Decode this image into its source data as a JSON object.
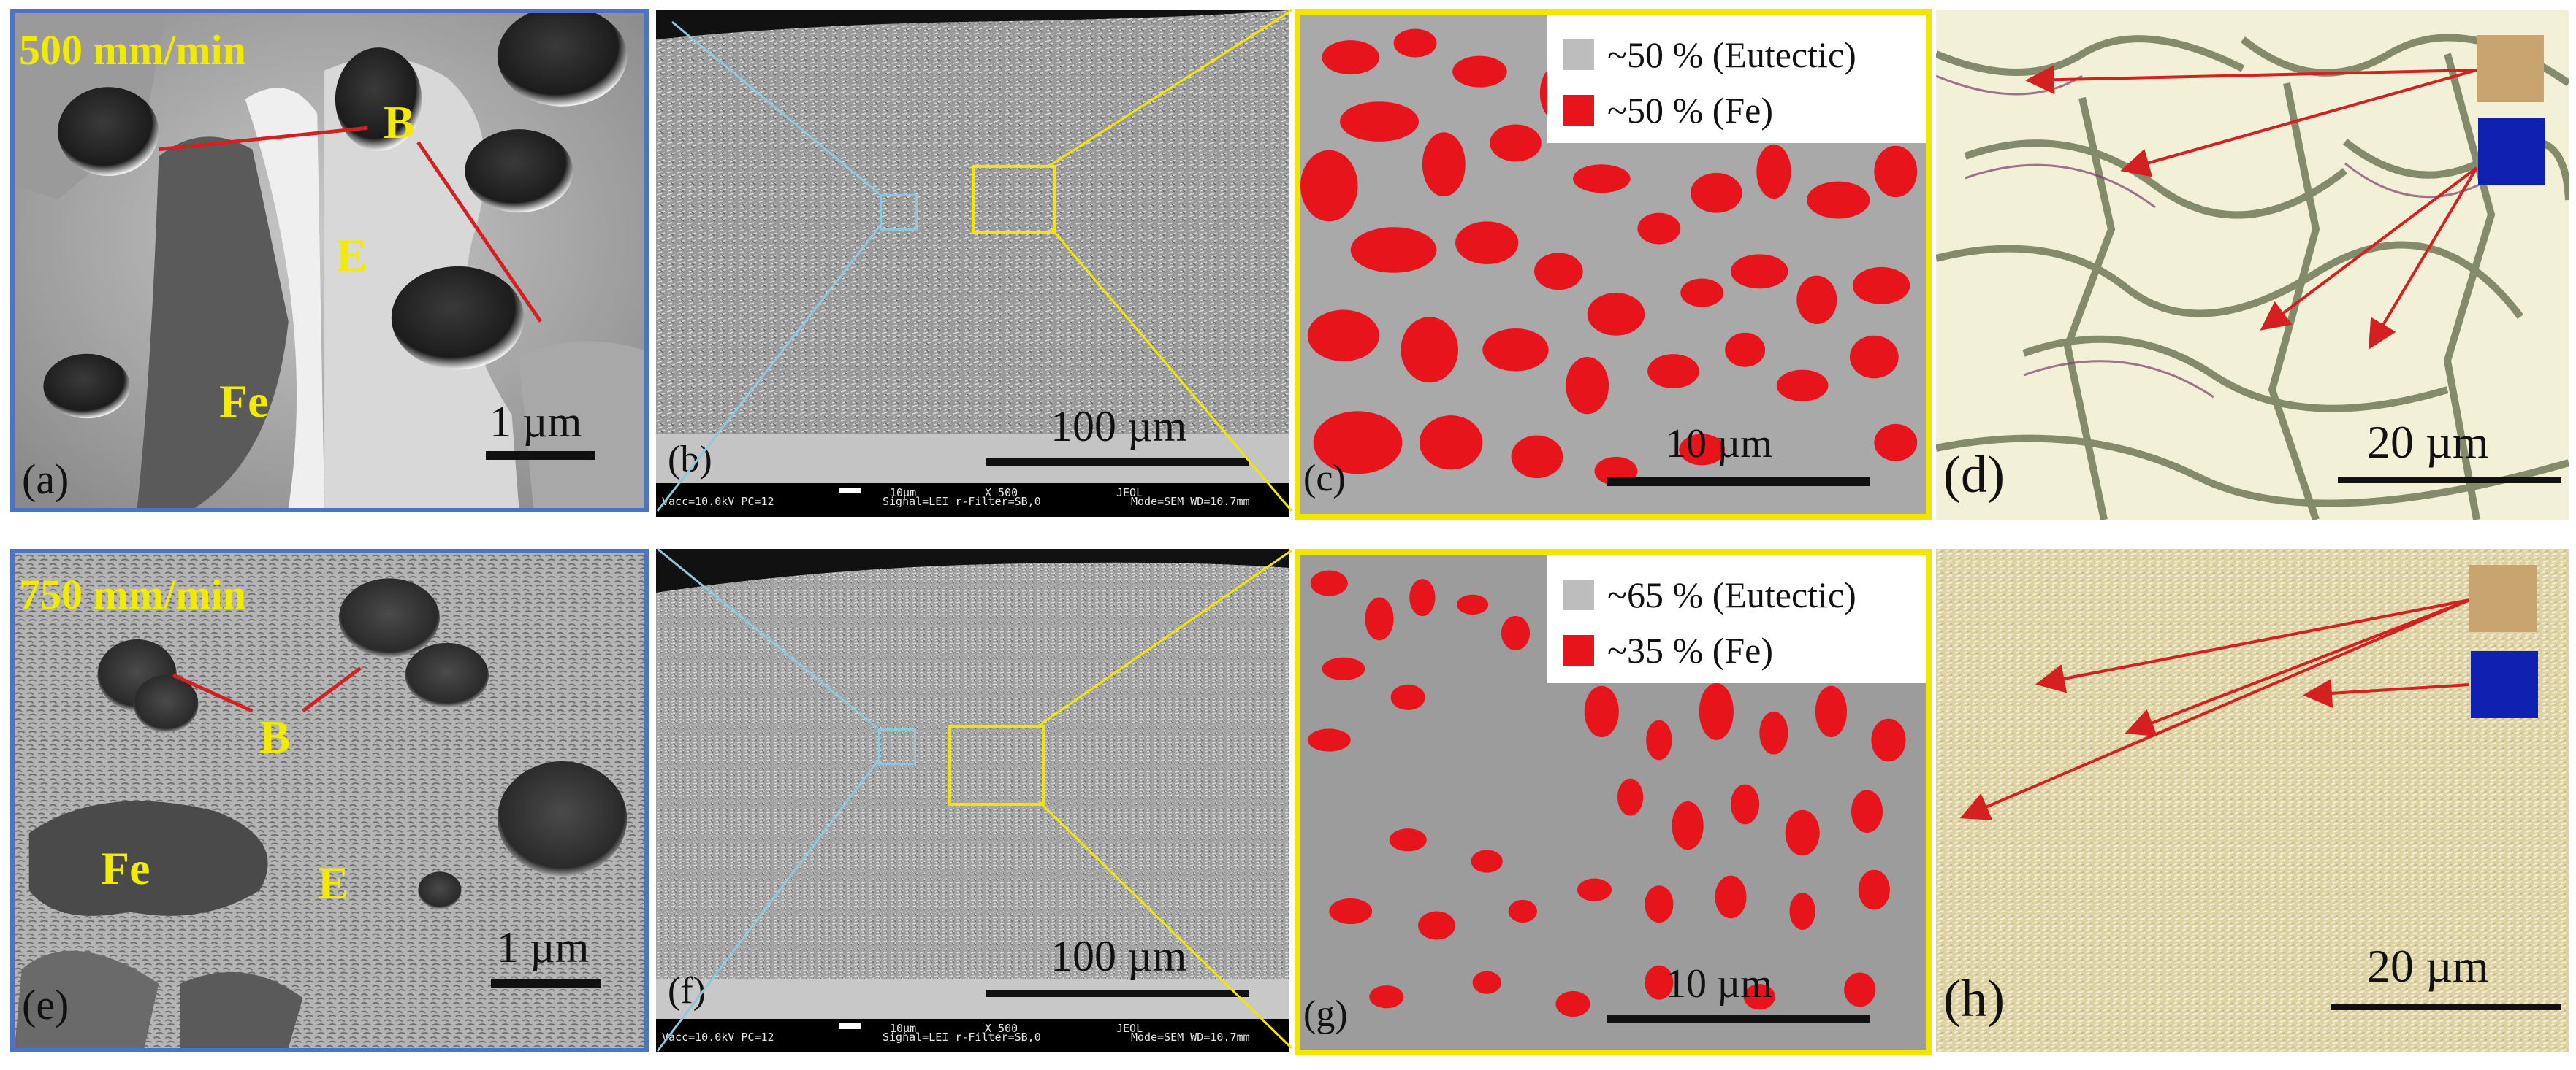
{
  "rows": [
    {
      "speed": "500 mm/min",
      "phase_labels": {
        "boride": "B",
        "eutectic": "E",
        "iron": "Fe"
      },
      "panel_letters": [
        "(a)",
        "(b)",
        "(c)",
        "(d)"
      ],
      "scale_labels": {
        "a": "1 µm",
        "b": "100 µm",
        "c": "10 µm",
        "d": "20 µm"
      },
      "legend": [
        {
          "text": "~50 % (Eutectic)",
          "color": "#bdbdbd"
        },
        {
          "text": "~50 % (Fe)",
          "color": "#e8141c"
        }
      ],
      "sem_footer": {
        "scalebar_label": "10µm",
        "vacc": "Vacc=10.0kV PC=12",
        "signal": "Signal=LEI  r-Filter=SB,0",
        "mag": "X 500",
        "brand": "JEOL",
        "mode": "Mode=SEM WD=10.7mm"
      }
    },
    {
      "speed": "750 mm/min",
      "phase_labels": {
        "boride": "B",
        "eutectic": "E",
        "iron": "Fe"
      },
      "panel_letters": [
        "(e)",
        "(f)",
        "(g)",
        "(h)"
      ],
      "scale_labels": {
        "a": "1 µm",
        "b": "100 µm",
        "c": "10 µm",
        "d": "20 µm"
      },
      "legend": [
        {
          "text": "~65 % (Eutectic)",
          "color": "#bdbdbd"
        },
        {
          "text": "~35 % (Fe)",
          "color": "#e8141c"
        }
      ],
      "sem_footer": {
        "scalebar_label": "10µm",
        "vacc": "Vacc=10.0kV PC=12",
        "signal": "Signal=LEI  r-Filter=SB,0",
        "mag": "X 500",
        "brand": "JEOL",
        "mode": "Mode=SEM WD=10.7mm"
      }
    }
  ],
  "colors": {
    "frame_blue": "#4a74c4",
    "frame_yellow": "#f2e600",
    "zoom_blue": "#8fc8dc",
    "zoom_yellow": "#f2e600",
    "arrow_red": "#d42020",
    "marker_tan": "#c8a46e",
    "marker_blue": "#1020b0",
    "fe_red": "#e8141c"
  }
}
